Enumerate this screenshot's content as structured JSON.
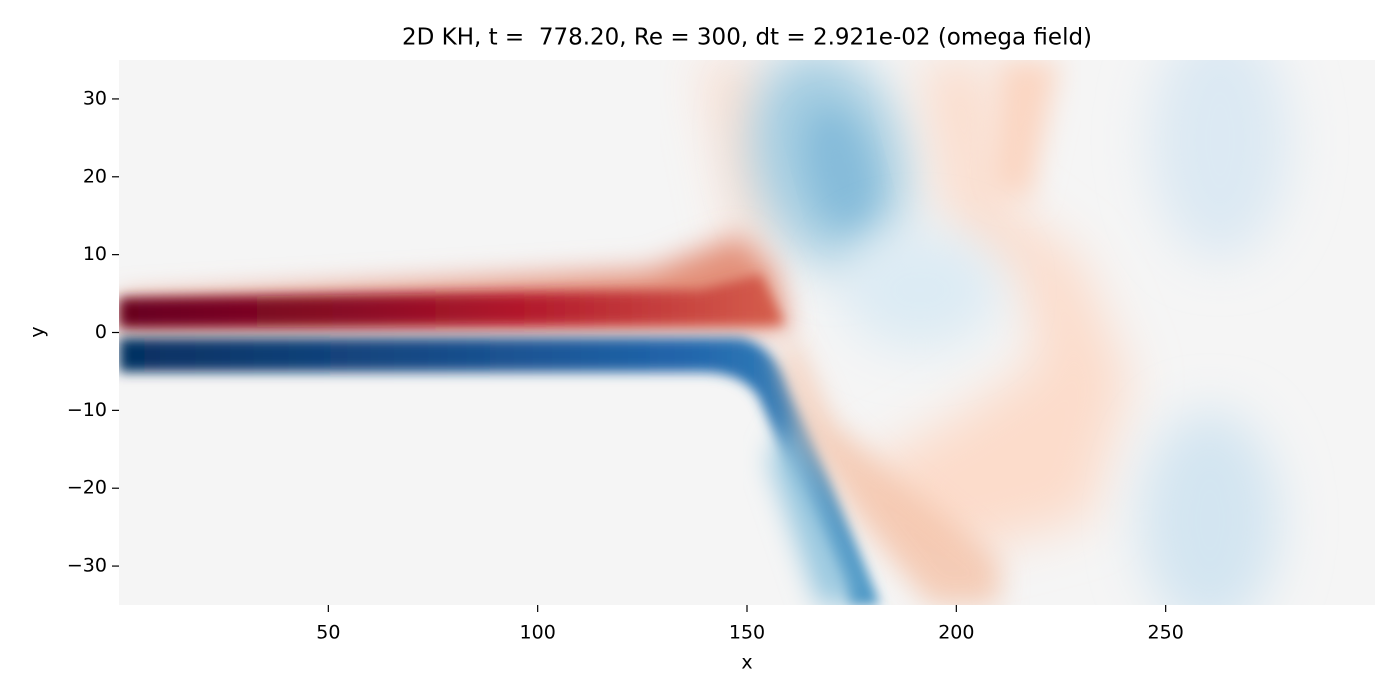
{
  "chart_data": {
    "type": "heatmap",
    "title": "2D KH, t =  778.20, Re = 300, dt = 2.921e-02 (omega field)",
    "xlabel": "x",
    "ylabel": "y",
    "xlim": [
      0,
      300
    ],
    "ylim": [
      -35,
      35
    ],
    "xticks": [
      50,
      100,
      150,
      200,
      250
    ],
    "yticks": [
      {
        "value": -30,
        "label": "−30"
      },
      {
        "value": -20,
        "label": "−20"
      },
      {
        "value": -10,
        "label": "−10"
      },
      0,
      10,
      20,
      30
    ],
    "colormap": "RdBu_r"
  }
}
